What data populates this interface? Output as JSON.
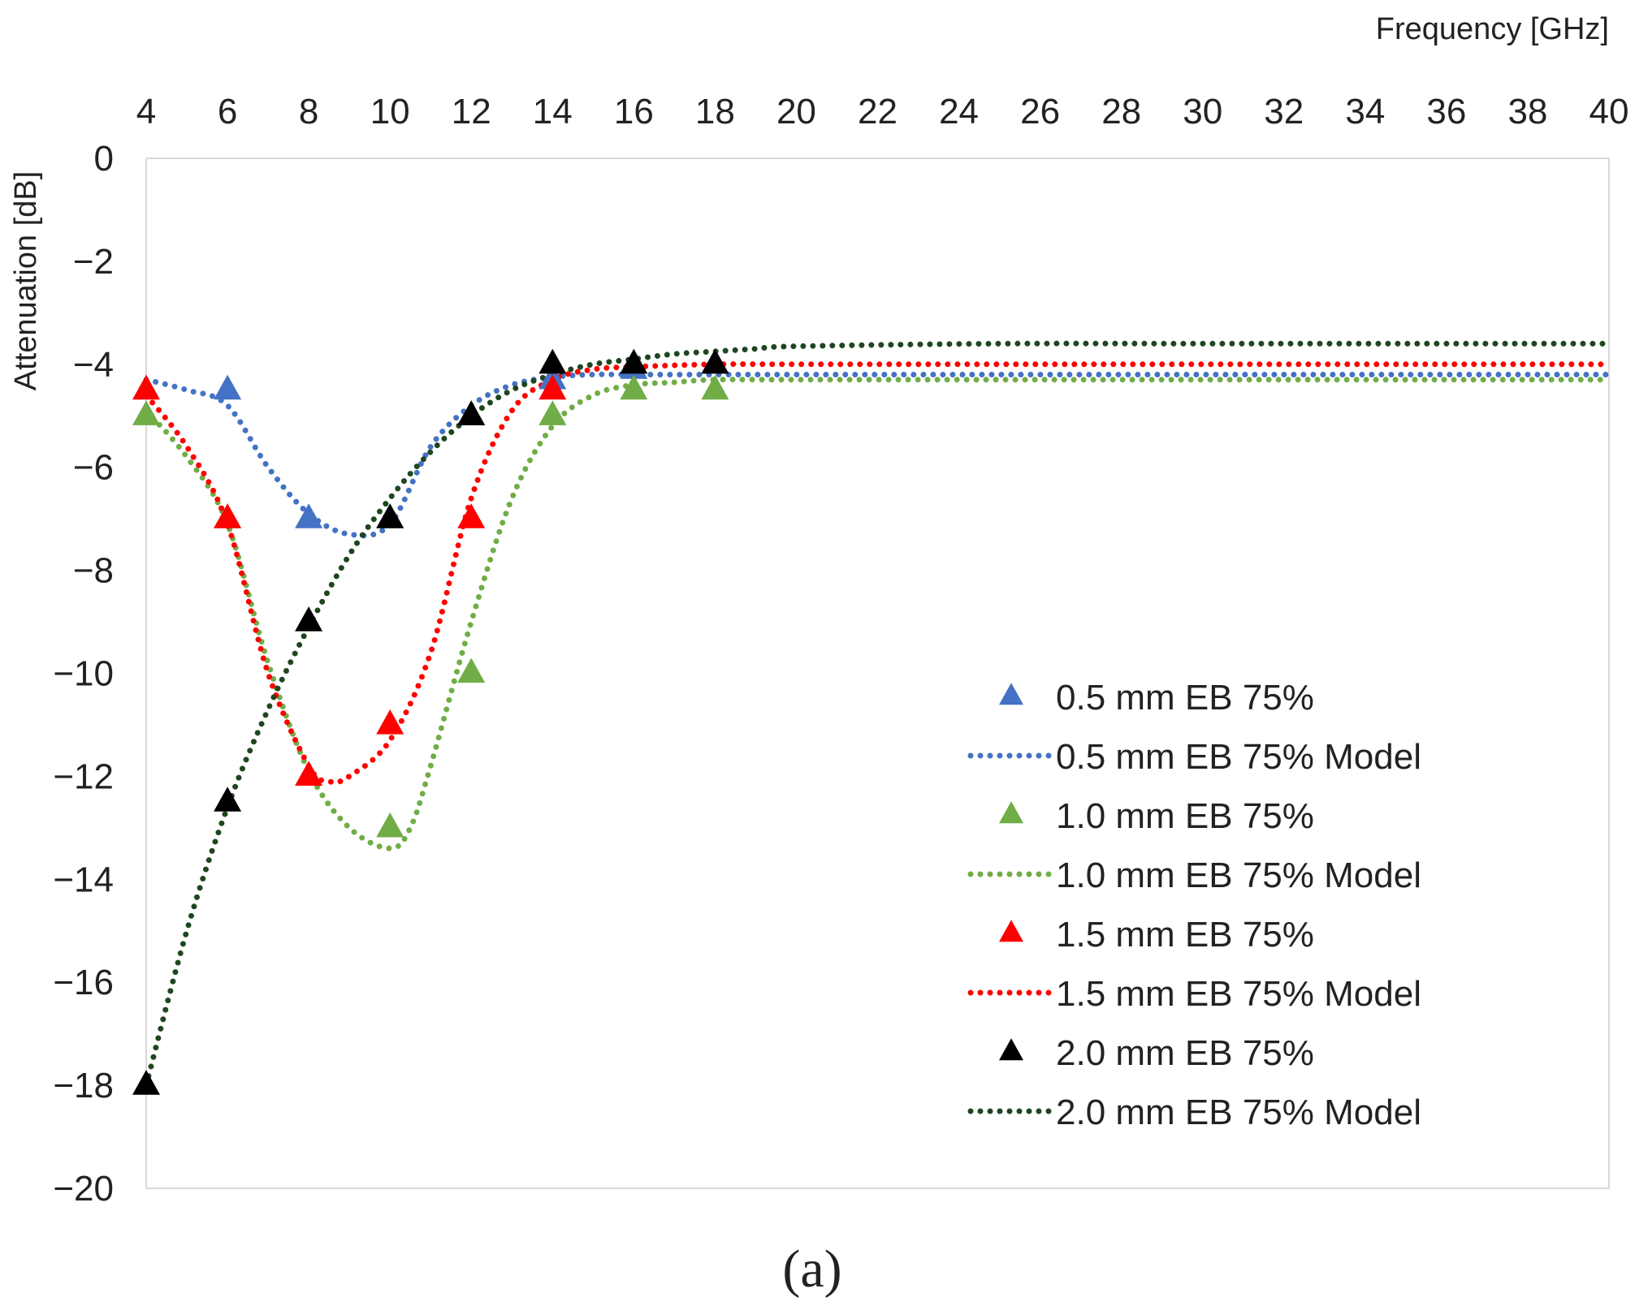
{
  "chart_data": {
    "type": "line",
    "xlabel": "Frequency [GHz]",
    "ylabel": "Attenuation [dB]",
    "xlim": [
      4,
      40
    ],
    "ylim": [
      -20,
      0
    ],
    "x_ticks": [
      4,
      6,
      8,
      10,
      12,
      14,
      16,
      18,
      20,
      22,
      24,
      26,
      28,
      30,
      32,
      34,
      36,
      38,
      40
    ],
    "y_ticks": [
      0,
      -2,
      -4,
      -6,
      -8,
      -10,
      -12,
      -14,
      -16,
      -18,
      -20
    ],
    "y_tick_labels": [
      "0",
      "−2",
      "−4",
      "−6",
      "−8",
      "−10",
      "−12",
      "−14",
      "−16",
      "−18",
      "−20"
    ],
    "x_axis_position": "top",
    "grid": false,
    "legend_position": "right",
    "panel_label": "(a)",
    "series": [
      {
        "name": "0.5 mm EB 75%",
        "kind": "markers",
        "marker": "triangle",
        "color": "#4472c4",
        "x": [
          6,
          8,
          10,
          12,
          14,
          16,
          18
        ],
        "y": [
          -4.5,
          -7.0,
          -7.0,
          -5.0,
          -4.3,
          -4.1,
          -4.0
        ]
      },
      {
        "name": "0.5 mm EB 75% Model",
        "kind": "dotted-line",
        "color": "#4472c4",
        "x": [
          4,
          5,
          6,
          7,
          8,
          9,
          10,
          11,
          12,
          13,
          14,
          15,
          16,
          18,
          20,
          25,
          30,
          35,
          40
        ],
        "y": [
          -4.3,
          -4.5,
          -4.8,
          -6.0,
          -6.9,
          -7.3,
          -7.1,
          -5.6,
          -4.8,
          -4.4,
          -4.25,
          -4.2,
          -4.2,
          -4.2,
          -4.2,
          -4.2,
          -4.2,
          -4.2,
          -4.2
        ]
      },
      {
        "name": "1.0 mm EB 75%",
        "kind": "markers",
        "marker": "triangle",
        "color": "#70ad47",
        "x": [
          4,
          6,
          8,
          10,
          12,
          14,
          16,
          18
        ],
        "y": [
          -5.0,
          -7.0,
          -12.0,
          -13.0,
          -10.0,
          -5.0,
          -4.5,
          -4.5
        ]
      },
      {
        "name": "1.0 mm EB 75% Model",
        "kind": "dotted-line",
        "color": "#70ad47",
        "x": [
          4,
          5,
          6,
          7,
          8,
          9,
          10,
          10.5,
          11,
          12,
          13,
          14,
          15,
          16,
          17,
          18,
          20,
          25,
          30,
          35,
          40
        ],
        "y": [
          -4.9,
          -5.8,
          -7.1,
          -9.8,
          -11.9,
          -13.0,
          -13.4,
          -13.0,
          -11.8,
          -9.0,
          -6.6,
          -5.2,
          -4.6,
          -4.4,
          -4.35,
          -4.3,
          -4.3,
          -4.3,
          -4.3,
          -4.3,
          -4.3
        ]
      },
      {
        "name": "1.5 mm EB 75%",
        "kind": "markers",
        "marker": "triangle",
        "color": "#ff0000",
        "x": [
          4,
          6,
          8,
          10,
          12,
          14
        ],
        "y": [
          -4.5,
          -7.0,
          -12.0,
          -11.0,
          -7.0,
          -4.5
        ]
      },
      {
        "name": "1.5 mm EB 75% Model",
        "kind": "dotted-line",
        "color": "#ff0000",
        "x": [
          4,
          5,
          6,
          7,
          8,
          8.5,
          9,
          10,
          11,
          12,
          13,
          14,
          15,
          16,
          18,
          20,
          25,
          30,
          35,
          40
        ],
        "y": [
          -4.6,
          -5.6,
          -7.1,
          -10.0,
          -11.8,
          -12.1,
          -12.0,
          -11.3,
          -9.6,
          -6.6,
          -4.9,
          -4.3,
          -4.1,
          -4.05,
          -4.0,
          -4.0,
          -4.0,
          -4.0,
          -4.0,
          -4.0
        ]
      },
      {
        "name": "2.0 mm EB 75%",
        "kind": "markers",
        "marker": "triangle",
        "color": "#000000",
        "x": [
          4,
          6,
          8,
          10,
          12,
          14,
          16,
          18
        ],
        "y": [
          -18.0,
          -12.5,
          -9.0,
          -7.0,
          -5.0,
          -4.0,
          -4.0,
          -4.0
        ]
      },
      {
        "name": "2.0 mm EB 75% Model",
        "kind": "dotted-line",
        "color": "#1e4620",
        "x": [
          4,
          5,
          6,
          7,
          8,
          9,
          10,
          11,
          12,
          13,
          14,
          15,
          16,
          17,
          18,
          19,
          20,
          25,
          30,
          35,
          40
        ],
        "y": [
          -18.0,
          -15.0,
          -12.6,
          -10.7,
          -9.1,
          -7.7,
          -6.6,
          -5.7,
          -5.0,
          -4.5,
          -4.2,
          -4.0,
          -3.9,
          -3.8,
          -3.75,
          -3.7,
          -3.65,
          -3.6,
          -3.6,
          -3.6,
          -3.6
        ]
      }
    ]
  }
}
